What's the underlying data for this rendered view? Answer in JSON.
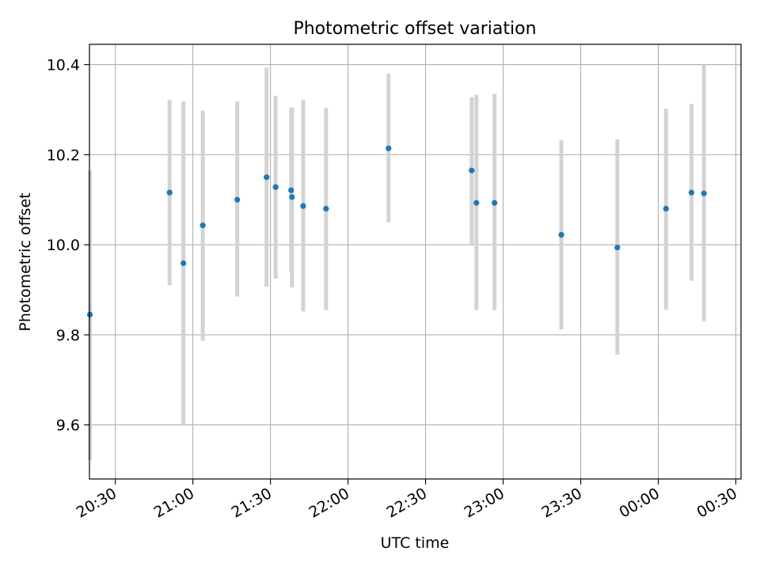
{
  "chart_data": {
    "type": "scatter",
    "title": "Photometric offset variation",
    "xlabel": "UTC time",
    "ylabel": "Photometric offset",
    "x_domain": [
      "20:20",
      "00:32"
    ],
    "ylim": [
      9.48,
      10.445
    ],
    "x_ticks": [
      "20:30",
      "21:00",
      "21:30",
      "22:00",
      "22:30",
      "23:00",
      "23:30",
      "00:00",
      "00:30"
    ],
    "y_ticks": [
      9.6,
      9.8,
      10.0,
      10.2,
      10.4
    ],
    "y_tick_labels": [
      "9.6",
      "9.8",
      "10.0",
      "10.2",
      "10.4"
    ],
    "grid": true,
    "colors": {
      "point": "#1f77b4",
      "errorbar": "#d3d3d3",
      "grid": "#b0b0b0",
      "axes": "#000000"
    },
    "points": [
      {
        "x": "20:20:10",
        "y": 9.845,
        "ylo": 9.522,
        "yhi": 10.165
      },
      {
        "x": "20:51:00",
        "y": 10.116,
        "ylo": 9.91,
        "yhi": 10.322
      },
      {
        "x": "20:56:20",
        "y": 9.959,
        "ylo": 9.6,
        "yhi": 10.318
      },
      {
        "x": "21:03:50",
        "y": 10.043,
        "ylo": 9.787,
        "yhi": 10.298
      },
      {
        "x": "21:17:10",
        "y": 10.1,
        "ylo": 9.885,
        "yhi": 10.318
      },
      {
        "x": "21:28:30",
        "y": 10.15,
        "ylo": 9.907,
        "yhi": 10.393
      },
      {
        "x": "21:32:00",
        "y": 10.128,
        "ylo": 9.925,
        "yhi": 10.331
      },
      {
        "x": "21:38:00",
        "y": 10.121,
        "ylo": 9.94,
        "yhi": 10.303
      },
      {
        "x": "21:38:20",
        "y": 10.106,
        "ylo": 9.905,
        "yhi": 10.305
      },
      {
        "x": "21:42:40",
        "y": 10.086,
        "ylo": 9.852,
        "yhi": 10.322
      },
      {
        "x": "21:51:30",
        "y": 10.08,
        "ylo": 9.855,
        "yhi": 10.304
      },
      {
        "x": "22:15:40",
        "y": 10.214,
        "ylo": 10.05,
        "yhi": 10.38
      },
      {
        "x": "22:47:50",
        "y": 10.165,
        "ylo": 10.0,
        "yhi": 10.328
      },
      {
        "x": "22:49:40",
        "y": 10.093,
        "ylo": 9.855,
        "yhi": 10.333
      },
      {
        "x": "22:56:40",
        "y": 10.093,
        "ylo": 9.855,
        "yhi": 10.335
      },
      {
        "x": "23:22:30",
        "y": 10.022,
        "ylo": 9.812,
        "yhi": 10.232
      },
      {
        "x": "23:44:10",
        "y": 9.994,
        "ylo": 9.756,
        "yhi": 10.234
      },
      {
        "x": "00:03:00",
        "y": 10.08,
        "ylo": 9.856,
        "yhi": 10.302
      },
      {
        "x": "00:12:50",
        "y": 10.116,
        "ylo": 9.92,
        "yhi": 10.313
      },
      {
        "x": "00:17:40",
        "y": 10.114,
        "ylo": 9.83,
        "yhi": 10.4
      }
    ]
  }
}
